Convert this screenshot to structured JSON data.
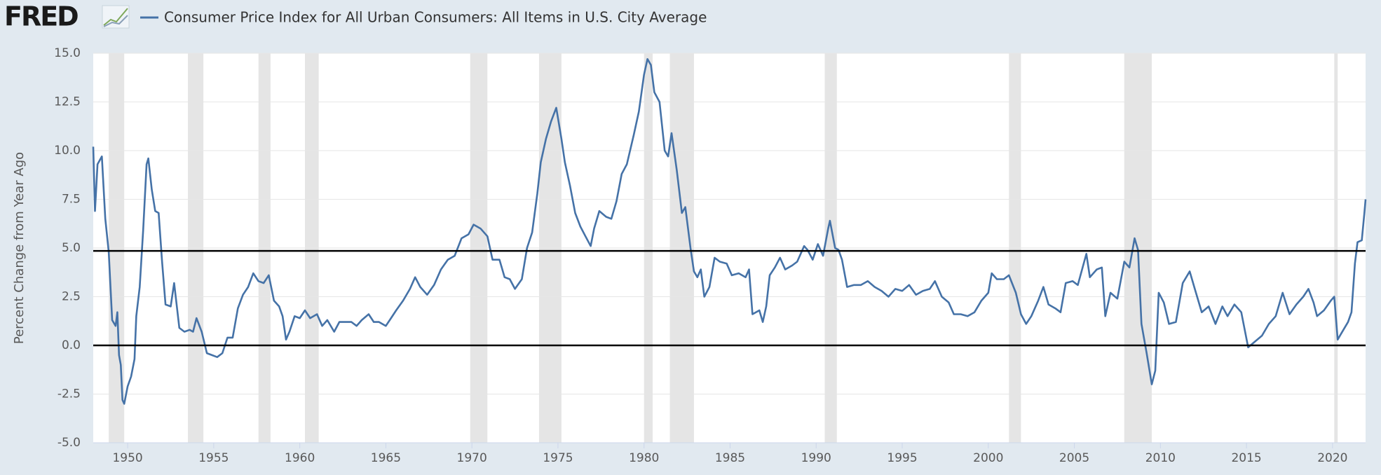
{
  "chart_data": {
    "type": "line",
    "logo": "FRED",
    "title": "Consumer Price Index for All Urban Consumers: All Items in U.S. City Average",
    "ylabel": "Percent Change from Year Ago",
    "xlim": [
      1948.0,
      2021.92
    ],
    "xticks": [
      1950,
      1955,
      1960,
      1965,
      1970,
      1975,
      1980,
      1985,
      1990,
      1995,
      2000,
      2005,
      2010,
      2015,
      2020
    ],
    "ylim": [
      -5,
      15
    ],
    "yticks": [
      {
        "value": -5,
        "label": "-5.0"
      },
      {
        "value": -2.5,
        "label": "-2.5"
      },
      {
        "value": 0,
        "label": "0.0"
      },
      {
        "value": 2.5,
        "label": "2.5"
      },
      {
        "value": 5,
        "label": "5.0"
      },
      {
        "value": 7.5,
        "label": "7.5"
      },
      {
        "value": 10,
        "label": "10.0"
      },
      {
        "value": 12.5,
        "label": "12.5"
      },
      {
        "value": 15,
        "label": "15.0"
      }
    ],
    "grid": true,
    "hlines": [
      4.85,
      0
    ],
    "recessions": [
      [
        1948.9,
        1949.8
      ],
      [
        1953.5,
        1954.4
      ],
      [
        1957.6,
        1958.3
      ],
      [
        1960.3,
        1961.1
      ],
      [
        1969.9,
        1970.9
      ],
      [
        1973.9,
        1975.2
      ],
      [
        1980.0,
        1980.5
      ],
      [
        1981.5,
        1982.9
      ],
      [
        1990.5,
        1991.2
      ],
      [
        2001.2,
        2001.9
      ],
      [
        2007.9,
        2009.5
      ],
      [
        2020.1,
        2020.3
      ]
    ],
    "series": [
      {
        "name": "Consumer Price Index for All Urban Consumers: All Items in U.S. City Average",
        "color": "#4572a7",
        "x": [
          1948.0,
          1948.1,
          1948.25,
          1948.5,
          1948.7,
          1948.9,
          1949.1,
          1949.3,
          1949.4,
          1949.5,
          1949.6,
          1949.7,
          1949.8,
          1950.0,
          1950.2,
          1950.4,
          1950.5,
          1950.7,
          1950.9,
          1951.1,
          1951.2,
          1951.4,
          1951.6,
          1951.8,
          1952.0,
          1952.2,
          1952.5,
          1952.7,
          1953.0,
          1953.3,
          1953.6,
          1953.8,
          1954.0,
          1954.3,
          1954.6,
          1954.9,
          1955.2,
          1955.5,
          1955.8,
          1956.1,
          1956.4,
          1956.7,
          1957.0,
          1957.3,
          1957.6,
          1957.9,
          1958.2,
          1958.5,
          1958.8,
          1959.0,
          1959.2,
          1959.4,
          1959.7,
          1960.0,
          1960.3,
          1960.6,
          1961.0,
          1961.3,
          1961.6,
          1962.0,
          1962.3,
          1962.6,
          1963.0,
          1963.3,
          1963.6,
          1964.0,
          1964.3,
          1964.6,
          1965.0,
          1965.3,
          1965.6,
          1966.0,
          1966.4,
          1966.7,
          1967.0,
          1967.4,
          1967.8,
          1968.2,
          1968.6,
          1969.0,
          1969.4,
          1969.8,
          1970.1,
          1970.5,
          1970.9,
          1971.2,
          1971.6,
          1971.9,
          1972.2,
          1972.5,
          1972.9,
          1973.2,
          1973.5,
          1973.8,
          1974.0,
          1974.3,
          1974.6,
          1974.9,
          1975.2,
          1975.4,
          1975.7,
          1976.0,
          1976.3,
          1976.6,
          1976.9,
          1977.1,
          1977.4,
          1977.8,
          1978.1,
          1978.4,
          1978.7,
          1979.0,
          1979.4,
          1979.7,
          1980.0,
          1980.2,
          1980.4,
          1980.6,
          1980.9,
          1981.2,
          1981.4,
          1981.6,
          1981.9,
          1982.2,
          1982.4,
          1982.7,
          1982.9,
          1983.1,
          1983.3,
          1983.5,
          1983.8,
          1984.1,
          1984.4,
          1984.8,
          1985.1,
          1985.5,
          1985.9,
          1986.1,
          1986.3,
          1986.7,
          1986.9,
          1987.1,
          1987.3,
          1987.6,
          1987.9,
          1988.2,
          1988.6,
          1988.9,
          1989.3,
          1989.5,
          1989.8,
          1990.1,
          1990.4,
          1990.7,
          1990.8,
          1991.1,
          1991.3,
          1991.5,
          1991.8,
          1992.2,
          1992.6,
          1993.0,
          1993.4,
          1993.8,
          1994.2,
          1994.6,
          1995.0,
          1995.4,
          1995.8,
          1996.2,
          1996.6,
          1996.9,
          1997.3,
          1997.7,
          1998.0,
          1998.4,
          1998.8,
          1999.2,
          1999.6,
          2000.0,
          2000.2,
          2000.5,
          2000.9,
          2001.2,
          2001.6,
          2001.9,
          2002.2,
          2002.5,
          2002.9,
          2003.2,
          2003.5,
          2003.9,
          2004.2,
          2004.5,
          2004.9,
          2005.2,
          2005.7,
          2005.9,
          2006.3,
          2006.6,
          2006.8,
          2007.1,
          2007.5,
          2007.9,
          2008.2,
          2008.5,
          2008.7,
          2008.9,
          2009.2,
          2009.5,
          2009.7,
          2009.9,
          2010.2,
          2010.5,
          2010.9,
          2011.3,
          2011.7,
          2012.0,
          2012.4,
          2012.8,
          2013.2,
          2013.6,
          2013.9,
          2014.3,
          2014.7,
          2014.9,
          2015.1,
          2015.5,
          2015.9,
          2016.3,
          2016.7,
          2017.1,
          2017.5,
          2017.9,
          2018.3,
          2018.6,
          2018.9,
          2019.1,
          2019.5,
          2019.9,
          2020.1,
          2020.3,
          2020.5,
          2020.9,
          2021.1,
          2021.3,
          2021.45,
          2021.7,
          2021.85,
          2021.92
        ],
        "values": [
          10.2,
          6.9,
          9.3,
          9.7,
          6.5,
          4.8,
          1.3,
          1.0,
          1.7,
          -0.5,
          -1.0,
          -2.8,
          -3.0,
          -2.1,
          -1.6,
          -0.7,
          1.5,
          3.0,
          5.9,
          9.3,
          9.6,
          8.0,
          6.9,
          6.8,
          4.3,
          2.1,
          2.0,
          3.2,
          0.9,
          0.7,
          0.8,
          0.7,
          1.4,
          0.7,
          -0.4,
          -0.5,
          -0.6,
          -0.4,
          0.4,
          0.4,
          1.9,
          2.6,
          3.0,
          3.7,
          3.3,
          3.2,
          3.6,
          2.3,
          2.0,
          1.5,
          0.3,
          0.7,
          1.5,
          1.4,
          1.8,
          1.4,
          1.6,
          1.0,
          1.3,
          0.7,
          1.2,
          1.2,
          1.2,
          1.0,
          1.3,
          1.6,
          1.2,
          1.2,
          1.0,
          1.4,
          1.8,
          2.3,
          2.9,
          3.5,
          3.0,
          2.6,
          3.1,
          3.9,
          4.4,
          4.6,
          5.5,
          5.7,
          6.2,
          6.0,
          5.6,
          4.4,
          4.4,
          3.5,
          3.4,
          2.9,
          3.4,
          5.0,
          5.8,
          7.8,
          9.4,
          10.6,
          11.5,
          12.2,
          10.6,
          9.4,
          8.2,
          6.8,
          6.1,
          5.6,
          5.1,
          6.0,
          6.9,
          6.6,
          6.5,
          7.4,
          8.8,
          9.3,
          10.8,
          12.0,
          13.9,
          14.7,
          14.4,
          13.0,
          12.5,
          10.0,
          9.7,
          10.9,
          9.0,
          6.8,
          7.1,
          5.0,
          3.8,
          3.5,
          3.9,
          2.5,
          3.0,
          4.5,
          4.3,
          4.2,
          3.6,
          3.7,
          3.5,
          3.9,
          1.6,
          1.8,
          1.2,
          2.0,
          3.6,
          4.0,
          4.5,
          3.9,
          4.1,
          4.3,
          5.1,
          4.9,
          4.4,
          5.2,
          4.6,
          6.0,
          6.4,
          5.0,
          4.9,
          4.4,
          3.0,
          3.1,
          3.1,
          3.3,
          3.0,
          2.8,
          2.5,
          2.9,
          2.8,
          3.1,
          2.6,
          2.8,
          2.9,
          3.3,
          2.5,
          2.2,
          1.6,
          1.6,
          1.5,
          1.7,
          2.3,
          2.7,
          3.7,
          3.4,
          3.4,
          3.6,
          2.7,
          1.6,
          1.1,
          1.5,
          2.3,
          3.0,
          2.1,
          1.9,
          1.7,
          3.2,
          3.3,
          3.1,
          4.7,
          3.5,
          3.9,
          4.0,
          1.5,
          2.7,
          2.4,
          4.3,
          4.0,
          5.5,
          4.9,
          1.1,
          -0.4,
          -2.0,
          -1.3,
          2.7,
          2.2,
          1.1,
          1.2,
          3.2,
          3.8,
          2.9,
          1.7,
          2.0,
          1.1,
          2.0,
          1.5,
          2.1,
          1.7,
          0.8,
          -0.1,
          0.2,
          0.5,
          1.1,
          1.5,
          2.7,
          1.6,
          2.1,
          2.5,
          2.9,
          2.2,
          1.5,
          1.8,
          2.3,
          2.5,
          0.3,
          0.6,
          1.2,
          1.7,
          4.2,
          5.3,
          5.4,
          6.8,
          7.5
        ]
      }
    ]
  }
}
